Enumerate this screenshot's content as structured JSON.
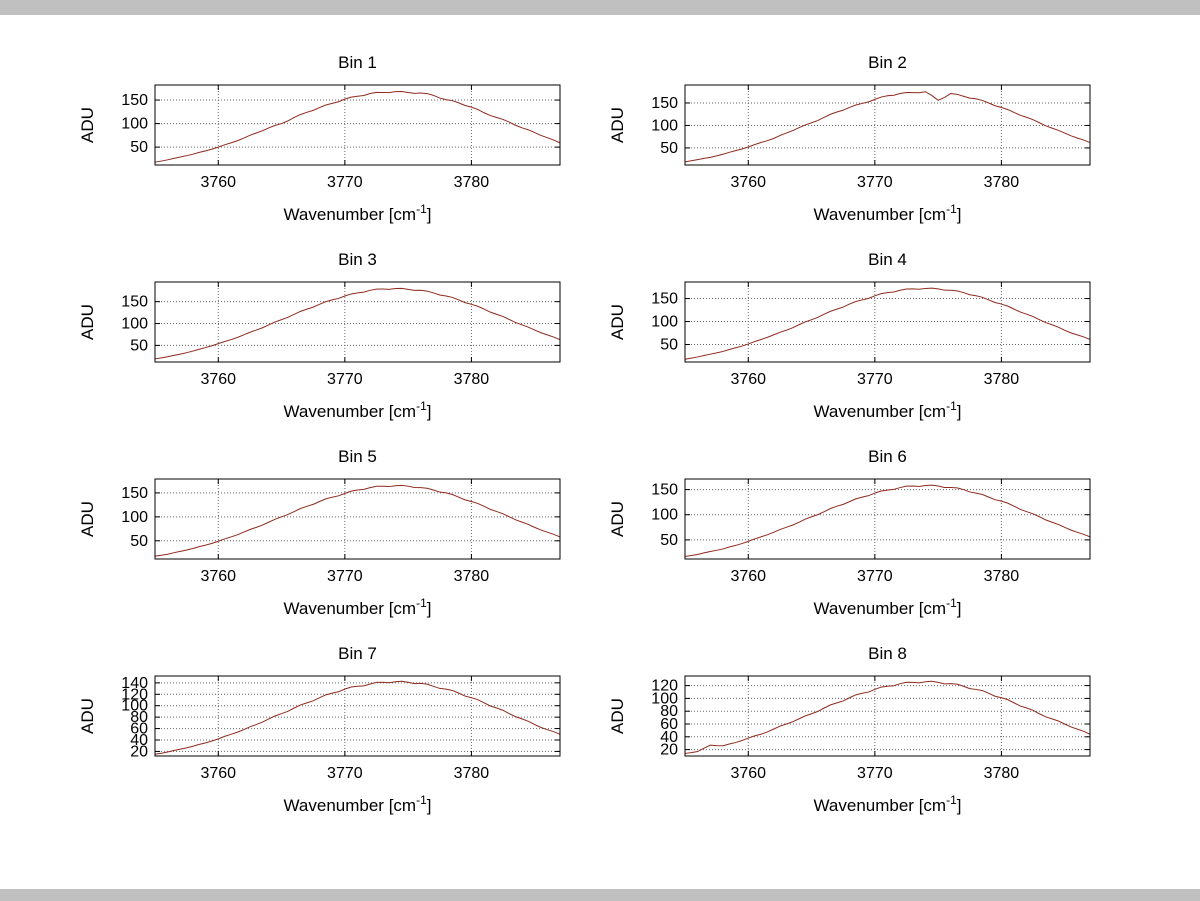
{
  "figure": {
    "background": "#ffffff",
    "chrome_color": "#c0c0c0",
    "curve_color": "#8f2a1e",
    "grid_color": "#666666",
    "axes_color": "#000000",
    "ylabel": "ADU",
    "xlabel_main": "Wavenumber [cm",
    "xlabel_sup": "-1",
    "xlabel_end": "]"
  },
  "chart_data": [
    {
      "type": "line",
      "title": "Bin 1",
      "xlabel": "Wavenumber [cm^-1]",
      "ylabel": "ADU",
      "x_start": 3755,
      "x_step": 1,
      "xlim": [
        3755,
        3787
      ],
      "ylim": [
        12,
        182
      ],
      "xticks": [
        3760,
        3770,
        3780
      ],
      "yticks": [
        50,
        100,
        150
      ],
      "grid": true,
      "legend": "none",
      "y": [
        18,
        23,
        29,
        35,
        42,
        50,
        59,
        69,
        80,
        91,
        100,
        113,
        124,
        134,
        143,
        152,
        158,
        164,
        166,
        168,
        166,
        165,
        160,
        151,
        144,
        135,
        123,
        113,
        103,
        91,
        81,
        70,
        59
      ]
    },
    {
      "type": "line",
      "title": "Bin 2",
      "xlabel": "Wavenumber [cm^-1]",
      "ylabel": "ADU",
      "x_start": 3755,
      "x_step": 1,
      "xlim": [
        3755,
        3787
      ],
      "ylim": [
        12,
        190
      ],
      "xticks": [
        3760,
        3770,
        3780
      ],
      "yticks": [
        50,
        100,
        150
      ],
      "grid": true,
      "legend": "none",
      "y": [
        19,
        24,
        29,
        36,
        44,
        52,
        62,
        71,
        83,
        95,
        106,
        118,
        130,
        140,
        149,
        158,
        166,
        171,
        173,
        175,
        156,
        171,
        165,
        159,
        150,
        140,
        129,
        118,
        106,
        94,
        83,
        72,
        62
      ]
    },
    {
      "type": "line",
      "title": "Bin 3",
      "xlabel": "Wavenumber [cm^-1]",
      "ylabel": "ADU",
      "x_start": 3755,
      "x_step": 1,
      "xlim": [
        3755,
        3787
      ],
      "ylim": [
        12,
        195
      ],
      "xticks": [
        3760,
        3770,
        3780
      ],
      "yticks": [
        50,
        100,
        150
      ],
      "grid": true,
      "legend": "none",
      "y": [
        19,
        24,
        30,
        37,
        45,
        54,
        63,
        74,
        85,
        97,
        109,
        121,
        133,
        144,
        154,
        163,
        170,
        176,
        179,
        180,
        178,
        176,
        170,
        163,
        154,
        144,
        133,
        121,
        109,
        97,
        85,
        74,
        63
      ]
    },
    {
      "type": "line",
      "title": "Bin 4",
      "xlabel": "Wavenumber [cm^-1]",
      "ylabel": "ADU",
      "x_start": 3755,
      "x_step": 1,
      "xlim": [
        3755,
        3787
      ],
      "ylim": [
        12,
        186
      ],
      "xticks": [
        3760,
        3770,
        3780
      ],
      "yticks": [
        50,
        100,
        150
      ],
      "grid": true,
      "legend": "none",
      "y": [
        18,
        23,
        29,
        35,
        43,
        51,
        61,
        71,
        81,
        93,
        104,
        116,
        127,
        138,
        147,
        156,
        163,
        168,
        171,
        172,
        171,
        168,
        163,
        156,
        147,
        138,
        127,
        116,
        104,
        93,
        81,
        71,
        61
      ]
    },
    {
      "type": "line",
      "title": "Bin 5",
      "xlabel": "Wavenumber [cm^-1]",
      "ylabel": "ADU",
      "x_start": 3755,
      "x_step": 1,
      "xlim": [
        3755,
        3787
      ],
      "ylim": [
        12,
        179
      ],
      "xticks": [
        3760,
        3770,
        3780
      ],
      "yticks": [
        50,
        100,
        150
      ],
      "grid": true,
      "legend": "none",
      "y": [
        18,
        22,
        28,
        34,
        41,
        49,
        58,
        68,
        78,
        89,
        100,
        111,
        122,
        132,
        141,
        149,
        156,
        161,
        164,
        165,
        164,
        161,
        156,
        150,
        141,
        132,
        122,
        111,
        100,
        89,
        78,
        68,
        58
      ]
    },
    {
      "type": "line",
      "title": "Bin 6",
      "xlabel": "Wavenumber [cm^-1]",
      "ylabel": "ADU",
      "x_start": 3755,
      "x_step": 1,
      "xlim": [
        3755,
        3787
      ],
      "ylim": [
        12,
        171
      ],
      "xticks": [
        3760,
        3770,
        3780
      ],
      "yticks": [
        50,
        100,
        150
      ],
      "grid": true,
      "legend": "none",
      "y": [
        17,
        21,
        27,
        32,
        39,
        47,
        56,
        65,
        75,
        85,
        96,
        106,
        117,
        126,
        135,
        143,
        149,
        154,
        157,
        158,
        157,
        154,
        150,
        143,
        135,
        127,
        117,
        106,
        96,
        85,
        75,
        65,
        56
      ]
    },
    {
      "type": "line",
      "title": "Bin 7",
      "xlabel": "Wavenumber [cm^-1]",
      "ylabel": "ADU",
      "x_start": 3755,
      "x_step": 1,
      "xlim": [
        3755,
        3787
      ],
      "ylim": [
        12,
        152
      ],
      "xticks": [
        3760,
        3770,
        3780
      ],
      "yticks": [
        20,
        40,
        60,
        80,
        100,
        120,
        140
      ],
      "grid": true,
      "legend": "none",
      "y": [
        15,
        19,
        24,
        29,
        35,
        42,
        50,
        58,
        67,
        77,
        86,
        96,
        105,
        114,
        122,
        129,
        134,
        138,
        141,
        142,
        141,
        139,
        134,
        129,
        122,
        114,
        105,
        96,
        86,
        77,
        67,
        58,
        50
      ]
    },
    {
      "type": "line",
      "title": "Bin 8",
      "xlabel": "Wavenumber [cm^-1]",
      "ylabel": "ADU",
      "x_start": 3755,
      "x_step": 1,
      "xlim": [
        3755,
        3787
      ],
      "ylim": [
        10,
        135
      ],
      "xticks": [
        3760,
        3770,
        3780
      ],
      "yticks": [
        20,
        40,
        60,
        80,
        100,
        120
      ],
      "grid": true,
      "legend": "none",
      "y": [
        14,
        17,
        27,
        26,
        31,
        38,
        44,
        52,
        60,
        68,
        76,
        85,
        93,
        101,
        108,
        114,
        119,
        123,
        125,
        126,
        125,
        123,
        119,
        114,
        108,
        101,
        93,
        85,
        76,
        68,
        60,
        52,
        44
      ]
    }
  ]
}
